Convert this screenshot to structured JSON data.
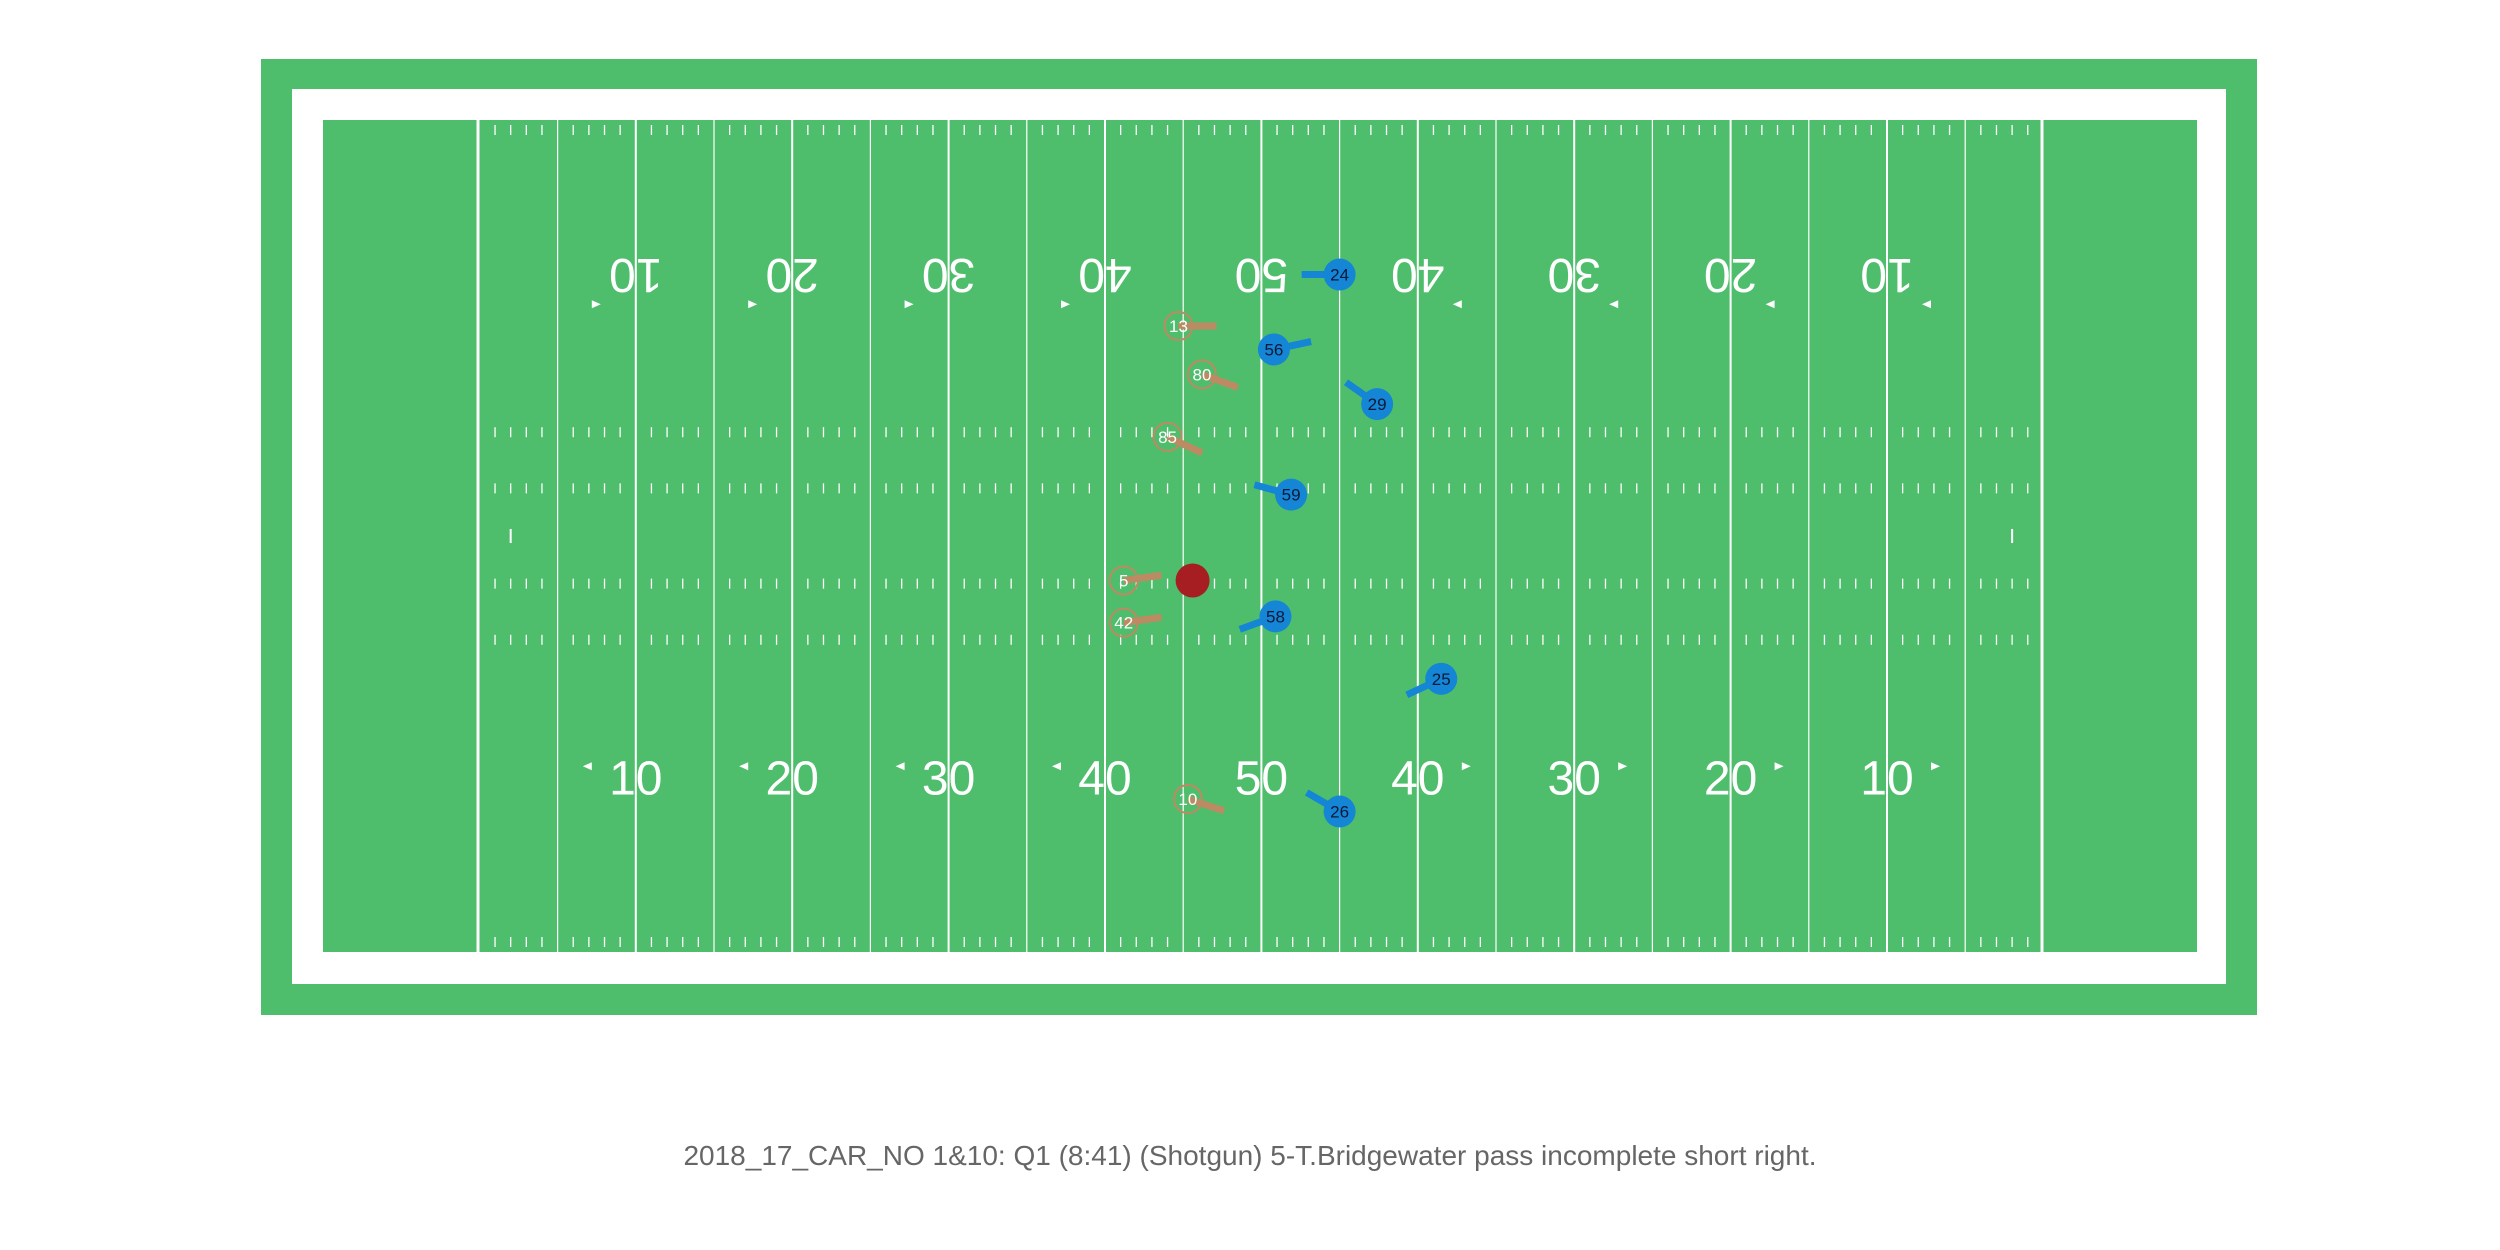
{
  "colors": {
    "turf": "#4fbe6c",
    "line": "#ffffff",
    "offense": "#bc8a63",
    "offense_ring": "#bc8a63",
    "defense": "#1585d5",
    "ball": "#a61e22",
    "caption": "#666666"
  },
  "field": {
    "top_numbers": [
      "10",
      "20",
      "30",
      "40",
      "50",
      "40",
      "30",
      "20",
      "10"
    ],
    "bottom_numbers": [
      "10",
      "20",
      "30",
      "40",
      "50",
      "40",
      "30",
      "20",
      "10"
    ]
  },
  "ball": {
    "yard": 55.6,
    "y": 29.5
  },
  "offense": [
    {
      "jersey": "13",
      "yard": 54.7,
      "y": 13.2,
      "dir_deg": 0
    },
    {
      "jersey": "80",
      "yard": 56.2,
      "y": 16.3,
      "dir_deg": 20
    },
    {
      "jersey": "85",
      "yard": 54.0,
      "y": 20.3,
      "dir_deg": 25
    },
    {
      "jersey": "5",
      "yard": 51.2,
      "y": 29.5,
      "dir_deg": -8
    },
    {
      "jersey": "42",
      "yard": 51.2,
      "y": 32.2,
      "dir_deg": -8
    },
    {
      "jersey": "10",
      "yard": 55.3,
      "y": 43.5,
      "dir_deg": 18
    }
  ],
  "defense": [
    {
      "jersey": "24",
      "yard": 65.0,
      "y": 9.9,
      "dir_deg": 180
    },
    {
      "jersey": "56",
      "yard": 60.8,
      "y": 14.7,
      "dir_deg": -12
    },
    {
      "jersey": "29",
      "yard": 67.4,
      "y": 18.2,
      "dir_deg": 215
    },
    {
      "jersey": "59",
      "yard": 61.9,
      "y": 24.0,
      "dir_deg": 195
    },
    {
      "jersey": "58",
      "yard": 60.9,
      "y": 31.8,
      "dir_deg": 160
    },
    {
      "jersey": "25",
      "yard": 71.5,
      "y": 35.8,
      "dir_deg": 155
    },
    {
      "jersey": "26",
      "yard": 65.0,
      "y": 44.3,
      "dir_deg": 210
    }
  ],
  "caption": "2018_17_CAR_NO 1&10: Q1 (8:41) (Shotgun) 5-T.Bridgewater pass incomplete short right."
}
